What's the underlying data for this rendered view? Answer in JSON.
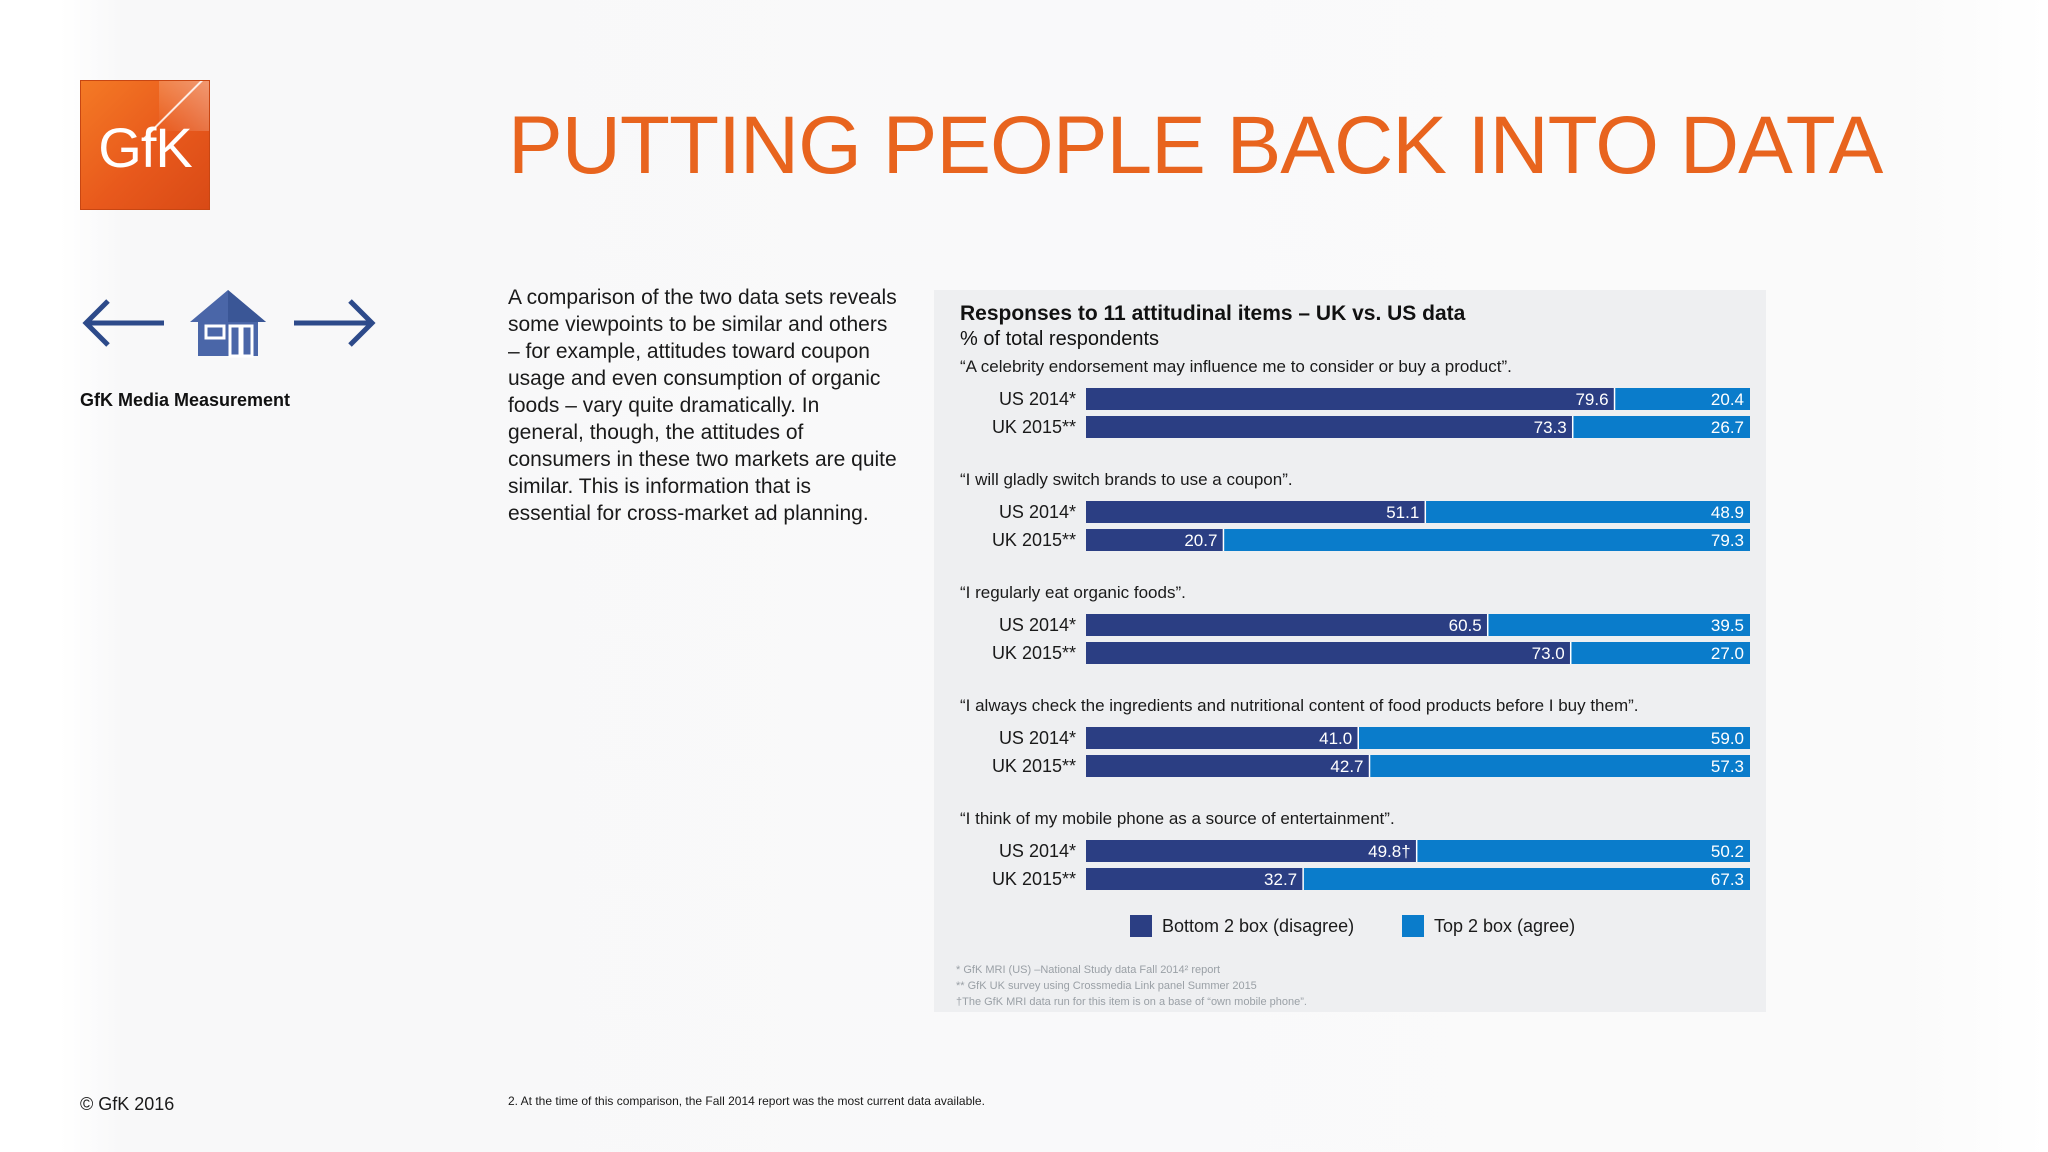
{
  "logo": {
    "text": "GfK"
  },
  "headline": "PUTTING PEOPLE BACK INTO DATA",
  "navigation": {
    "prev_icon": "arrow-left-icon",
    "home_icon": "home-icon",
    "next_icon": "arrow-right-icon",
    "section_label": "GfK Media Measurement",
    "accent_color": "#2d4a8a"
  },
  "intro_text": "A comparison of the two data sets reveals some viewpoints to be similar and others – for example, attitudes toward coupon usage and even consumption of organic foods – vary quite dramatically. In general, though, the attitudes of consumers in these two markets are quite similar. This is information that is essential for cross-market ad planning.",
  "chart_data": {
    "type": "bar",
    "orientation": "horizontal-stacked",
    "title": "Responses to 11 attitudinal items – UK vs. US data",
    "subtitle": "% of total respondents",
    "xlim": [
      0,
      100
    ],
    "colors": {
      "bottom2": "#2b3e83",
      "top2": "#0a7ccb",
      "panel": "#eeeff1"
    },
    "legend": {
      "position": "bottom-center",
      "items": [
        {
          "label": "Bottom 2 box (disagree)",
          "color": "#2b3e83"
        },
        {
          "label": "Top 2 box (agree)",
          "color": "#0a7ccb"
        }
      ]
    },
    "groups": [
      {
        "statement": "“A celebrity endorsement may influence me to consider or buy a product”.",
        "rows": [
          {
            "label": "US 2014*",
            "bottom2": 79.6,
            "top2": 20.4,
            "bottom2_text": "79.6",
            "top2_text": "20.4"
          },
          {
            "label": "UK 2015**",
            "bottom2": 73.3,
            "top2": 26.7,
            "bottom2_text": "73.3",
            "top2_text": "26.7"
          }
        ]
      },
      {
        "statement": "“I will gladly switch brands to use a coupon”.",
        "rows": [
          {
            "label": "US 2014*",
            "bottom2": 51.1,
            "top2": 48.9,
            "bottom2_text": "51.1",
            "top2_text": "48.9"
          },
          {
            "label": "UK 2015**",
            "bottom2": 20.7,
            "top2": 79.3,
            "bottom2_text": "20.7",
            "top2_text": "79.3"
          }
        ]
      },
      {
        "statement": "“I regularly eat organic foods”.",
        "rows": [
          {
            "label": "US 2014*",
            "bottom2": 60.5,
            "top2": 39.5,
            "bottom2_text": "60.5",
            "top2_text": "39.5"
          },
          {
            "label": "UK 2015**",
            "bottom2": 73.0,
            "top2": 27.0,
            "bottom2_text": "73.0",
            "top2_text": "27.0"
          }
        ]
      },
      {
        "statement": "“I always check  the ingredients and nutritional content of food products before I buy them”.",
        "rows": [
          {
            "label": "US 2014*",
            "bottom2": 41.0,
            "top2": 59.0,
            "bottom2_text": "41.0",
            "top2_text": "59.0"
          },
          {
            "label": "UK 2015**",
            "bottom2": 42.7,
            "top2": 57.3,
            "bottom2_text": "42.7",
            "top2_text": "57.3"
          }
        ]
      },
      {
        "statement": "“I think of my mobile phone as a source of entertainment”.",
        "rows": [
          {
            "label": "US 2014*",
            "bottom2": 49.8,
            "top2": 50.2,
            "bottom2_text": "49.8†",
            "top2_text": "50.2"
          },
          {
            "label": "UK 2015**",
            "bottom2": 32.7,
            "top2": 67.3,
            "bottom2_text": "32.7",
            "top2_text": "67.3"
          }
        ]
      }
    ],
    "footnotes": [
      "* GfK MRI (US) –National Study data Fall 2014² report",
      "** GfK UK survey using Crossmedia Link panel Summer 2015",
      "†The GfK MRI data run for this item is on a base of “own mobile phone”."
    ]
  },
  "copyright": "© GfK 2016",
  "bottom_note": "2.  At the time of this comparison, the Fall 2014 report was the most current data available."
}
